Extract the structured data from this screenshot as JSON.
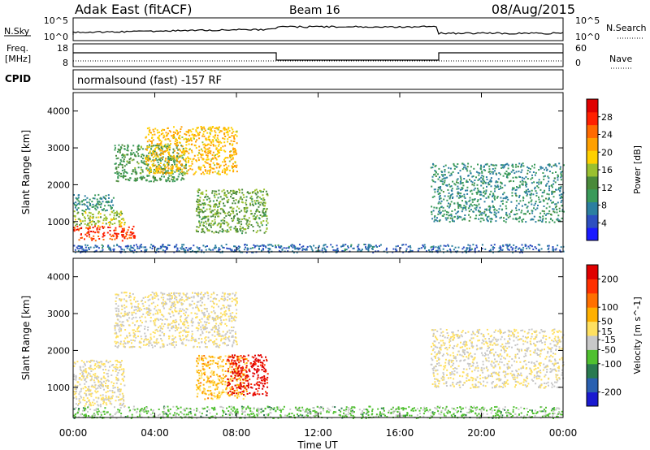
{
  "header": {
    "title": "Adak East (fitACF)",
    "beam": "Beam 16",
    "date": "08/Aug/2015"
  },
  "nsky_panel": {
    "left_label": "N.Sky",
    "right_label": "N.Search",
    "left_ticks": [
      "10^5",
      "10^0"
    ],
    "right_ticks": [
      "10^5",
      "10^0"
    ]
  },
  "freq_panel": {
    "left_label_line1": "Freq.",
    "left_label_line2": "[MHz]",
    "left_ticks": [
      "18",
      "8"
    ],
    "right_label": "Nave",
    "right_ticks": [
      "60",
      "0"
    ]
  },
  "cpid": {
    "label": "CPID",
    "text": "normalsound (fast) -157 RF"
  },
  "chart_data": [
    {
      "type": "heatmap",
      "name": "power",
      "ylabel": "Slant Range [km]",
      "ylim": [
        180,
        4500
      ],
      "yticks": [
        1000,
        2000,
        3000,
        4000
      ],
      "xlim": [
        0,
        24
      ],
      "colorbar": {
        "label": "Power [dB]",
        "ticks": [
          4,
          8,
          12,
          16,
          20,
          24,
          28
        ],
        "range": [
          0,
          32
        ],
        "colors": [
          "#1a1aff",
          "#2d4fc0",
          "#2c7fa0",
          "#3a9a5a",
          "#4a8a3a",
          "#9ac030",
          "#ffd000",
          "#ffa000",
          "#ff6a00",
          "#ff2000",
          "#e00000"
        ]
      },
      "regions": [
        {
          "t0": 0.0,
          "t1": 3.0,
          "r0": 500,
          "r1": 900,
          "power": 27
        },
        {
          "t0": 0.0,
          "t1": 2.5,
          "r0": 900,
          "r1": 1300,
          "power": 16
        },
        {
          "t0": 0.0,
          "t1": 2.0,
          "r0": 1300,
          "r1": 1750,
          "power": 9
        },
        {
          "t0": 2.0,
          "t1": 5.5,
          "r0": 2100,
          "r1": 3100,
          "power": 12
        },
        {
          "t0": 3.5,
          "t1": 8.0,
          "r0": 2300,
          "r1": 3600,
          "power": 20
        },
        {
          "t0": 6.0,
          "t1": 9.5,
          "r0": 700,
          "r1": 1900,
          "power": 14
        },
        {
          "t0": 17.5,
          "t1": 24.0,
          "r0": 1000,
          "r1": 2600,
          "power": 9
        },
        {
          "t0": 0.0,
          "t1": 24.0,
          "r0": 180,
          "r1": 400,
          "power": 6
        }
      ]
    },
    {
      "type": "heatmap",
      "name": "velocity",
      "ylabel": "Slant Range [km]",
      "ylim": [
        180,
        4500
      ],
      "yticks": [
        1000,
        2000,
        3000,
        4000
      ],
      "xlim": [
        0,
        24
      ],
      "xlabel": "Time UT",
      "xticks": [
        "00:00",
        "04:00",
        "08:00",
        "12:00",
        "16:00",
        "20:00",
        "00:00"
      ],
      "colorbar": {
        "label": "Velocity [m s^-1]",
        "ticks": [
          200,
          100,
          50,
          15,
          -15,
          -50,
          -100,
          -200
        ],
        "range": [
          -250,
          250
        ],
        "colors": [
          "#1a1ad0",
          "#2a60b0",
          "#2a7a50",
          "#50c030",
          "#c8c8c8",
          "#ffe060",
          "#ffb000",
          "#ff7000",
          "#ff3000",
          "#e00000"
        ]
      },
      "regions": [
        {
          "t0": 0.0,
          "t1": 2.5,
          "r0": 500,
          "r1": 1750,
          "velocity": 0
        },
        {
          "t0": 2.0,
          "t1": 8.0,
          "r0": 2100,
          "r1": 3600,
          "velocity": 0
        },
        {
          "t0": 6.0,
          "t1": 8.5,
          "r0": 700,
          "r1": 1900,
          "velocity": 60
        },
        {
          "t0": 7.5,
          "t1": 9.5,
          "r0": 800,
          "r1": 1900,
          "velocity": 220
        },
        {
          "t0": 17.5,
          "t1": 24.0,
          "r0": 1000,
          "r1": 2600,
          "velocity": 0
        },
        {
          "t0": 0.0,
          "t1": 24.0,
          "r0": 180,
          "r1": 500,
          "velocity": -60
        }
      ]
    }
  ]
}
